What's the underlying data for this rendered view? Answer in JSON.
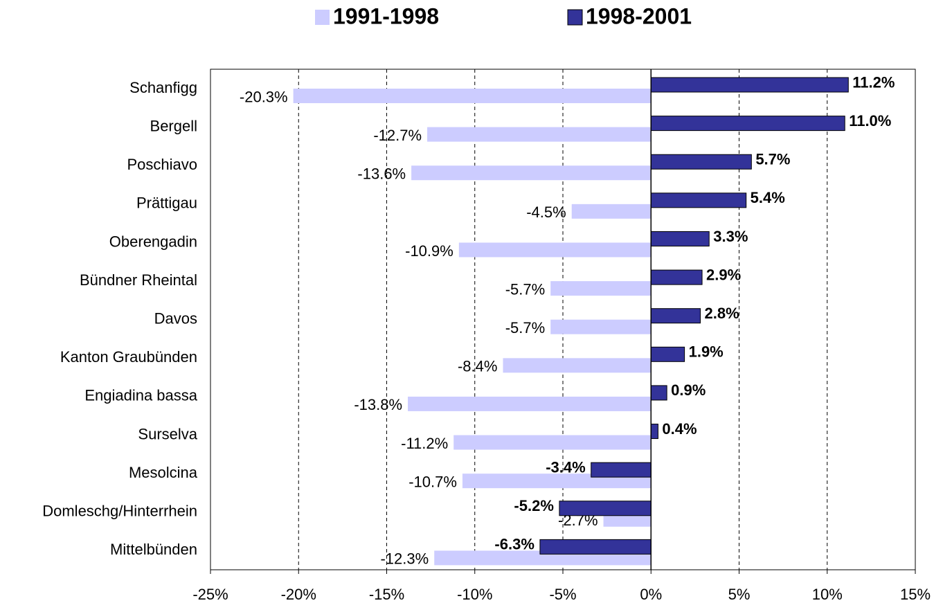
{
  "chart_data": {
    "type": "barh",
    "categories": [
      "Schanfigg",
      "Bergell",
      "Poschiavo",
      "Prättigau",
      "Oberengadin",
      "Bündner Rheintal",
      "Davos",
      "Kanton Graubünden",
      "Engiadina bassa",
      "Surselva",
      "Mesolcina",
      "Domleschg/Hinterrhein",
      "Mittelbünden"
    ],
    "series": [
      {
        "name": "1991-1998",
        "color": "#ccccff",
        "values": [
          -20.3,
          -12.7,
          -13.6,
          -4.5,
          -10.9,
          -5.7,
          -5.7,
          -8.4,
          -13.8,
          -11.2,
          -10.7,
          -2.7,
          -12.3
        ],
        "value_labels": [
          "-20.3%",
          "-12.7%",
          "-13.6%",
          "-4.5%",
          "-10.9%",
          "-5.7%",
          "-5.7%",
          "-8.4%",
          "-13.8%",
          "-11.2%",
          "-10.7%",
          "-2.7%",
          "-12.3%"
        ]
      },
      {
        "name": "1998-2001",
        "color": "#333399",
        "values": [
          11.2,
          11.0,
          5.7,
          5.4,
          3.3,
          2.9,
          2.8,
          1.9,
          0.9,
          0.4,
          -3.4,
          -5.2,
          -6.3
        ],
        "value_labels": [
          "11.2%",
          "11.0%",
          "5.7%",
          "5.4%",
          "3.3%",
          "2.9%",
          "2.8%",
          "1.9%",
          "0.9%",
          "0.4%",
          "-3.4%",
          "-5.2%",
          "-6.3%"
        ]
      }
    ],
    "xlim": [
      -25,
      15
    ],
    "xticks": [
      {
        "value": -25,
        "label": "-25%"
      },
      {
        "value": -20,
        "label": "-20%"
      },
      {
        "value": -15,
        "label": "-15%"
      },
      {
        "value": -10,
        "label": "-10%"
      },
      {
        "value": -5,
        "label": "-5%"
      },
      {
        "value": 0,
        "label": "0%"
      },
      {
        "value": 5,
        "label": "5%"
      },
      {
        "value": 10,
        "label": "10%"
      },
      {
        "value": 15,
        "label": "15%"
      }
    ],
    "grid": true,
    "legend": "top"
  }
}
